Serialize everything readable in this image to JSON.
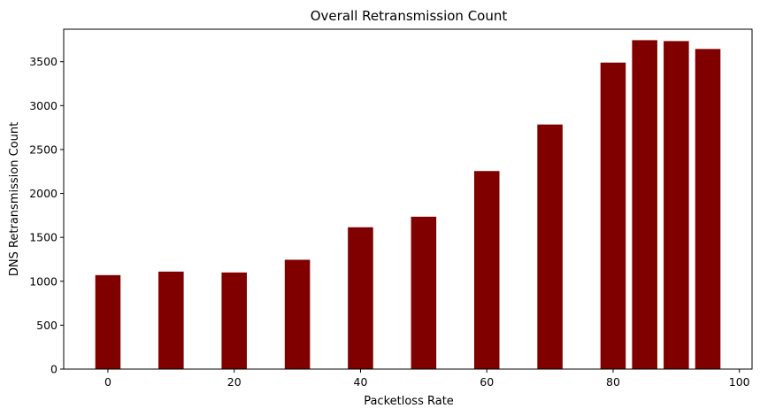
{
  "chart_data": {
    "type": "bar",
    "title": "Overall Retransmission Count",
    "xlabel": "Packetloss Rate",
    "ylabel": "DNS Retransmission Count",
    "x": [
      0,
      10,
      20,
      30,
      40,
      50,
      60,
      70,
      80,
      85,
      90,
      95
    ],
    "values": [
      1070,
      1110,
      1100,
      1245,
      1615,
      1735,
      2255,
      2785,
      3490,
      3745,
      3735,
      3645
    ],
    "bar_width": 4,
    "xlim": [
      -7,
      102
    ],
    "ylim": [
      0,
      3870
    ],
    "xticks": [
      0,
      20,
      40,
      60,
      80,
      100
    ],
    "yticks": [
      0,
      500,
      1000,
      1500,
      2000,
      2500,
      3000,
      3500
    ],
    "bar_color": "#800000",
    "grid": false
  }
}
